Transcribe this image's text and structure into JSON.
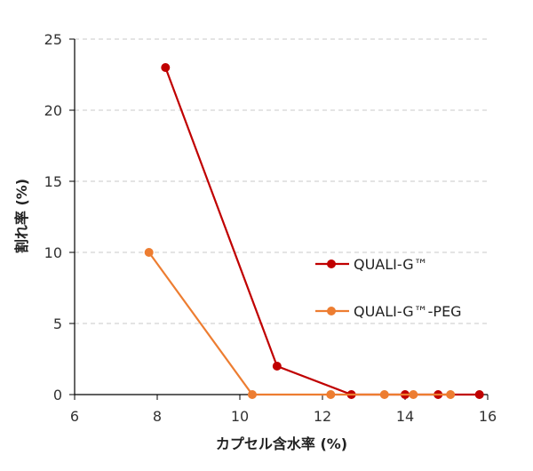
{
  "chart_data": {
    "type": "line",
    "title": "",
    "xlabel": "カプセル含水率 (%)",
    "ylabel": "割れ率 (%)",
    "xlim": [
      6,
      16
    ],
    "ylim": [
      0,
      25
    ],
    "xticks": [
      6,
      8,
      10,
      12,
      14,
      16
    ],
    "yticks": [
      0,
      5,
      10,
      15,
      20,
      25
    ],
    "grid": "horizontal dashed",
    "legend_position": "right",
    "series": [
      {
        "name": "QUALI-G™",
        "color": "#c00000",
        "x": [
          8.2,
          10.9,
          12.7,
          14.0,
          14.8,
          15.8
        ],
        "y": [
          23,
          2,
          0,
          0,
          0,
          0
        ]
      },
      {
        "name": "QUALI-G™-PEG",
        "color": "#ed7d31",
        "x": [
          7.8,
          10.3,
          12.2,
          13.5,
          14.2,
          15.1
        ],
        "y": [
          10,
          0,
          0,
          0,
          0,
          0
        ]
      }
    ]
  }
}
